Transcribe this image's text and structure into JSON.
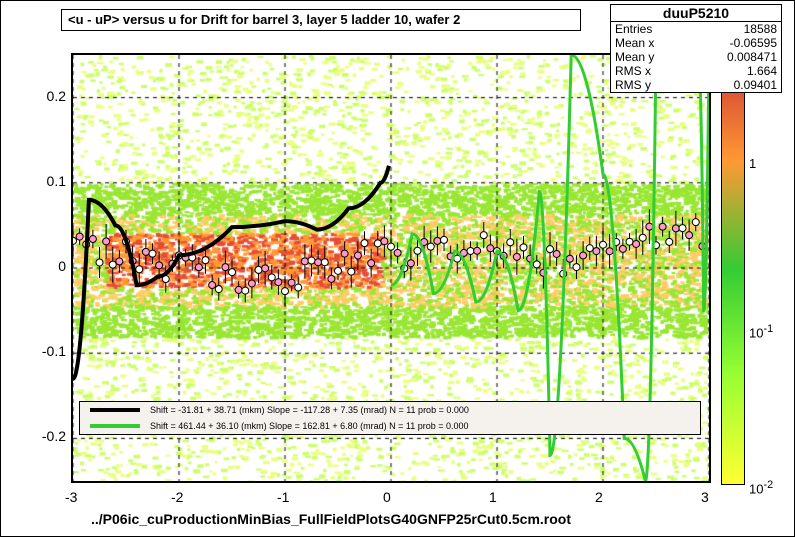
{
  "title": "<u - uP>       versus   u for Drift for barrel 3, layer 5 ladder 10, wafer 2",
  "stats": {
    "name": "duuP5210",
    "rows": [
      {
        "k": "Entries",
        "v": "18588"
      },
      {
        "k": "Mean x",
        "v": "-0.06595"
      },
      {
        "k": "Mean y",
        "v": "0.008471"
      },
      {
        "k": "RMS x",
        "v": "1.664"
      },
      {
        "k": "RMS y",
        "v": "0.09401"
      }
    ]
  },
  "axes": {
    "xlim": [
      -3,
      3
    ],
    "ylim": [
      -0.25,
      0.25
    ],
    "xticks": [
      -3,
      -2,
      -1,
      0,
      1,
      2,
      3
    ],
    "yticks": [
      -0.2,
      -0.1,
      0,
      0.1,
      0.2
    ]
  },
  "colorbar": {
    "stops": [
      {
        "p": 0,
        "c": "#ffff33"
      },
      {
        "p": 0.25,
        "c": "#99ff33"
      },
      {
        "p": 0.5,
        "c": "#33cc33"
      },
      {
        "p": 0.75,
        "c": "#ff9933"
      },
      {
        "p": 1,
        "c": "#cc3333"
      }
    ],
    "labels": [
      {
        "v": "1",
        "y": 155
      },
      {
        "v": "10",
        "y": 322,
        "sup": "-1"
      },
      {
        "v": "10",
        "y": 478,
        "sup": "-2"
      }
    ]
  },
  "legend": [
    {
      "color": "#000000",
      "text": "Shift =   -31.81 +  38.71 (mkm) Slope =  -117.28 +  7.35 (mrad)  N = 11 prob = 0.000"
    },
    {
      "color": "#33cc33",
      "text": "Shift =   461.44 +  36.10 (mkm) Slope =   162.81 +  6.80 (mrad)  N = 11 prob = 0.000"
    }
  ],
  "footer": "../P06ic_cuProductionMinBias_FullFieldPlotsG40GNFP25rCut0.5cm.root",
  "curves": {
    "black": [
      [
        -3,
        -0.13
      ],
      [
        -2.85,
        0.08
      ],
      [
        -2.6,
        0.05
      ],
      [
        -2.4,
        -0.02
      ],
      [
        -2.2,
        -0.01
      ],
      [
        -2,
        0.015
      ],
      [
        -1.5,
        0.048
      ],
      [
        -1,
        0.055
      ],
      [
        -0.7,
        0.045
      ],
      [
        -0.4,
        0.07
      ],
      [
        -0.1,
        0.1
      ],
      [
        -0.02,
        0.12
      ]
    ],
    "green": [
      [
        0,
        -0.02
      ],
      [
        0.2,
        0.04
      ],
      [
        0.4,
        -0.03
      ],
      [
        0.6,
        0.02
      ],
      [
        0.8,
        -0.04
      ],
      [
        1,
        0.02
      ],
      [
        1.2,
        -0.05
      ],
      [
        1.4,
        0.09
      ],
      [
        1.5,
        -0.22
      ],
      [
        1.7,
        0.25
      ],
      [
        2,
        0.11
      ],
      [
        2.2,
        -0.2
      ],
      [
        2.4,
        -0.25
      ],
      [
        2.5,
        0.25
      ],
      [
        2.9,
        0.25
      ],
      [
        2.95,
        -0.05
      ],
      [
        3,
        0.25
      ]
    ]
  },
  "heat": {
    "band_center": 0.01,
    "band_half": 0.09,
    "hot_xrange": [
      -2.7,
      -0.1
    ],
    "colors": {
      "low1": "#eaff80",
      "low2": "#ccff66",
      "mid": "#99e633",
      "hot1": "#ffcc66",
      "hot2": "#ff9933",
      "hot3": "#e64d33"
    }
  },
  "markers": {
    "count_per_side": 48,
    "y_base": 0.005,
    "y_jitter": 0.035,
    "color_a": "#ff99cc",
    "color_b": "#ffffff"
  }
}
